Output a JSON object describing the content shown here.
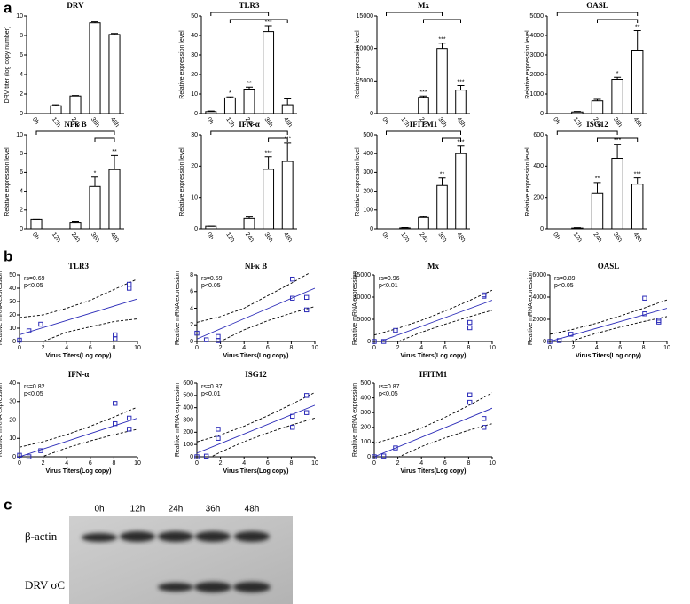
{
  "panel_labels": [
    "a",
    "b",
    "c"
  ],
  "blot": {
    "lanes": [
      "0h",
      "12h",
      "24h",
      "36h",
      "48h"
    ],
    "rows": [
      "β-actin",
      "DRV σC"
    ]
  },
  "chart_data": [
    {
      "type": "bar",
      "title": "DRV",
      "ylabel": "DRV titer (log copy number)",
      "categories": [
        "0h",
        "12h",
        "24h",
        "36h",
        "48h"
      ],
      "values": [
        0,
        0.8,
        1.8,
        9.3,
        8.1
      ],
      "errors": [
        0,
        0.1,
        0.05,
        0.1,
        0.1
      ],
      "stars": [
        null,
        null,
        null,
        null,
        null
      ],
      "comparisons": [],
      "ylim": [
        0,
        10
      ],
      "yticks": [
        0,
        2,
        4,
        6,
        8,
        10
      ]
    },
    {
      "type": "bar",
      "title": "TLR3",
      "ylabel": "Relative expression level",
      "categories": [
        "0h",
        "12h",
        "24h",
        "36h",
        "48h"
      ],
      "values": [
        1,
        8,
        12.5,
        42,
        4.5
      ],
      "errors": [
        0.3,
        0.5,
        1,
        3,
        3
      ],
      "stars": [
        null,
        "*",
        "**",
        "***",
        null
      ],
      "comparisons": [
        [
          0,
          3
        ],
        [
          1,
          4
        ]
      ],
      "ylim": [
        0,
        50
      ],
      "yticks": [
        0,
        10,
        20,
        30,
        40,
        50
      ]
    },
    {
      "type": "bar",
      "title": "Mx",
      "ylabel": "Relative expression level",
      "categories": [
        "0h",
        "12h",
        "24h",
        "36h",
        "48h"
      ],
      "values": [
        0,
        0,
        2500,
        10000,
        3600
      ],
      "errors": [
        0,
        0,
        200,
        800,
        700
      ],
      "stars": [
        null,
        null,
        "***",
        "***",
        "***"
      ],
      "comparisons": [
        [
          0,
          3
        ],
        [
          2,
          4
        ]
      ],
      "ylim": [
        0,
        15000
      ],
      "yticks": [
        0,
        5000,
        10000,
        15000
      ]
    },
    {
      "type": "bar",
      "title": "OASL",
      "ylabel": "Relative expression level",
      "categories": [
        "0h",
        "12h",
        "24h",
        "36h",
        "48h"
      ],
      "values": [
        0,
        80,
        650,
        1750,
        3250
      ],
      "errors": [
        0,
        30,
        80,
        100,
        1000
      ],
      "stars": [
        null,
        null,
        null,
        "*",
        "**"
      ],
      "comparisons": [
        [
          0,
          4
        ],
        [
          2,
          4
        ]
      ],
      "ylim": [
        0,
        5000
      ],
      "yticks": [
        0,
        1000,
        2000,
        3000,
        4000,
        5000
      ]
    },
    {
      "type": "bar",
      "title": "NFκ B",
      "ylabel": "Relative expression level",
      "categories": [
        "0h",
        "12h",
        "24h",
        "36h",
        "48h"
      ],
      "values": [
        1,
        0,
        0.7,
        4.5,
        6.3
      ],
      "errors": [
        0,
        0,
        0.1,
        1,
        1.5
      ],
      "stars": [
        null,
        null,
        null,
        "*",
        "**"
      ],
      "comparisons": [
        [
          0,
          4
        ],
        [
          3,
          4
        ]
      ],
      "ylim": [
        0,
        10
      ],
      "yticks": [
        0,
        2,
        4,
        6,
        8,
        10
      ]
    },
    {
      "type": "bar",
      "title": "IFN-α",
      "ylabel": "Relative expression level",
      "categories": [
        "0h",
        "12h",
        "24h",
        "36h",
        "48h"
      ],
      "values": [
        0.8,
        0,
        3.3,
        19,
        21.5
      ],
      "errors": [
        0,
        0,
        0.5,
        4,
        6
      ],
      "stars": [
        null,
        null,
        null,
        "***",
        "***"
      ],
      "comparisons": [
        [
          0,
          4
        ],
        [
          3,
          4
        ]
      ],
      "ylim": [
        0,
        30
      ],
      "yticks": [
        0,
        10,
        20,
        30
      ]
    },
    {
      "type": "bar",
      "title": "IFITM1",
      "ylabel": "Relative expression level",
      "categories": [
        "0h",
        "12h",
        "24h",
        "36h",
        "48h"
      ],
      "values": [
        0,
        5,
        60,
        230,
        400
      ],
      "errors": [
        0,
        2,
        5,
        40,
        40
      ],
      "stars": [
        null,
        null,
        null,
        "**",
        "***"
      ],
      "comparisons": [
        [
          0,
          4
        ],
        [
          3,
          4
        ]
      ],
      "ylim": [
        0,
        500
      ],
      "yticks": [
        0,
        100,
        200,
        300,
        400,
        500
      ]
    },
    {
      "type": "bar",
      "title": "ISG12",
      "ylabel": "Relative expression level",
      "categories": [
        "0h",
        "12h",
        "24h",
        "36h",
        "48h"
      ],
      "values": [
        0,
        5,
        225,
        450,
        285
      ],
      "errors": [
        0,
        3,
        70,
        90,
        40
      ],
      "stars": [
        null,
        null,
        "**",
        "***",
        "***"
      ],
      "comparisons": [
        [
          0,
          3
        ],
        [
          2,
          4
        ]
      ],
      "ylim": [
        0,
        600
      ],
      "yticks": [
        0,
        200,
        400,
        600
      ]
    },
    {
      "type": "scatter",
      "title": "TLR3",
      "xlabel": "Virus Titers(Log copy)",
      "ylabel": "Realtive mRNA expression",
      "annotations": [
        "rs=0.69",
        "p<0.05"
      ],
      "color": "#2b2bb8",
      "x": [
        0,
        0.8,
        1.8,
        8.1,
        8.1,
        9.3,
        9.3
      ],
      "y": [
        1,
        8,
        13,
        5,
        2,
        40,
        43
      ],
      "fit": {
        "x": [
          0,
          10
        ],
        "y": [
          5,
          32
        ]
      },
      "band": {
        "x": [
          0,
          2,
          4,
          6,
          8,
          10
        ],
        "upper": [
          18,
          20,
          25,
          31,
          39,
          47
        ],
        "lower": [
          -8,
          0,
          7,
          11,
          15,
          17
        ]
      },
      "xlim": [
        0,
        10
      ],
      "xticks": [
        0,
        2,
        4,
        6,
        8,
        10
      ],
      "ylim": [
        0,
        50
      ],
      "yticks": [
        0,
        10,
        20,
        30,
        40,
        50
      ]
    },
    {
      "type": "scatter",
      "title": "NFκ B",
      "xlabel": "Virus Titers(Log copy)",
      "ylabel": "Realtive mRNA expression",
      "annotations": [
        "rs=0.59",
        "p<0.05"
      ],
      "color": "#2b2bb8",
      "x": [
        0,
        0.8,
        1.8,
        1.8,
        8.1,
        8.1,
        9.3,
        9.3
      ],
      "y": [
        1,
        0.2,
        0.6,
        0.1,
        7.5,
        5.2,
        5.3,
        3.8
      ],
      "fit": {
        "x": [
          0,
          10
        ],
        "y": [
          0.3,
          6.4
        ]
      },
      "band": {
        "x": [
          0,
          2,
          4,
          6,
          8,
          10
        ],
        "upper": [
          2.3,
          3,
          4,
          5.5,
          7,
          8.6
        ],
        "lower": [
          -1.7,
          0,
          1.4,
          2.5,
          3.4,
          4.2
        ]
      },
      "xlim": [
        0,
        10
      ],
      "xticks": [
        0,
        2,
        4,
        6,
        8,
        10
      ],
      "ylim": [
        0,
        8
      ],
      "yticks": [
        0,
        2,
        4,
        6,
        8
      ]
    },
    {
      "type": "scatter",
      "title": "Mx",
      "xlabel": "Virus Titers(Log copy)",
      "ylabel": "Realtive mRNA expression",
      "annotations": [
        "rs=0.96",
        "p<0.01"
      ],
      "color": "#2b2bb8",
      "x": [
        0,
        0.8,
        1.8,
        8.1,
        8.1,
        9.3,
        9.3
      ],
      "y": [
        0,
        0,
        2500,
        4300,
        3100,
        10500,
        10200
      ],
      "fit": {
        "x": [
          0,
          10
        ],
        "y": [
          -500,
          9300
        ]
      },
      "band": {
        "x": [
          0,
          2,
          4,
          6,
          8,
          10
        ],
        "upper": [
          1450,
          2960,
          4770,
          6880,
          9140,
          11550
        ],
        "lower": [
          -2450,
          -40,
          2070,
          3880,
          5540,
          7050
        ]
      },
      "xlim": [
        0,
        10
      ],
      "xticks": [
        0,
        2,
        4,
        6,
        8,
        10
      ],
      "ylim": [
        0,
        15000
      ],
      "yticks": [
        0,
        5000,
        10000,
        15000
      ]
    },
    {
      "type": "scatter",
      "title": "OASL",
      "xlabel": "Virus Titers(Log copy)",
      "ylabel": "Realtive mRNA expression",
      "annotations": [
        "rs=0.89",
        "p<0.05"
      ],
      "color": "#2b2bb8",
      "x": [
        0,
        0.8,
        1.8,
        8.1,
        8.1,
        9.3,
        9.3
      ],
      "y": [
        0,
        80,
        650,
        3900,
        2500,
        1750,
        1900
      ],
      "fit": {
        "x": [
          0,
          10
        ],
        "y": [
          0,
          3000
        ]
      },
      "band": {
        "x": [
          0,
          2,
          4,
          6,
          8,
          10
        ],
        "upper": [
          650,
          1100,
          1650,
          2300,
          3000,
          3750
        ],
        "lower": [
          -650,
          100,
          750,
          1300,
          1800,
          2250
        ]
      },
      "xlim": [
        0,
        10
      ],
      "xticks": [
        0,
        2,
        4,
        6,
        8,
        10
      ],
      "ylim": [
        0,
        6000
      ],
      "yticks": [
        0,
        2000,
        4000,
        6000
      ]
    },
    {
      "type": "scatter",
      "title": "IFN-α",
      "xlabel": "Virus Titers(Log copy)",
      "ylabel": "Realtive mRNA expression",
      "annotations": [
        "rs=0.82",
        "p<0.05"
      ],
      "color": "#2b2bb8",
      "x": [
        0,
        0.8,
        1.8,
        8.1,
        8.1,
        9.3,
        9.3
      ],
      "y": [
        0.8,
        0,
        3.3,
        29,
        18,
        21,
        15
      ],
      "fit": {
        "x": [
          0,
          10
        ],
        "y": [
          0,
          21
        ]
      },
      "band": {
        "x": [
          0,
          2,
          4,
          6,
          8,
          10
        ],
        "upper": [
          5.2,
          8.2,
          12,
          16.6,
          21.6,
          27
        ],
        "lower": [
          -5.2,
          0.2,
          4.8,
          8.6,
          12,
          15
        ]
      },
      "xlim": [
        0,
        10
      ],
      "xticks": [
        0,
        2,
        4,
        6,
        8,
        10
      ],
      "ylim": [
        0,
        40
      ],
      "yticks": [
        0,
        10,
        20,
        30,
        40
      ]
    },
    {
      "type": "scatter",
      "title": "ISG12",
      "xlabel": "Virus Titers(Log copy)",
      "ylabel": "Realtive mRNA expression",
      "annotations": [
        "rs=0.87",
        "p<0.01"
      ],
      "color": "#2b2bb8",
      "x": [
        0,
        0.8,
        1.8,
        1.8,
        8.1,
        8.1,
        9.3,
        9.3
      ],
      "y": [
        0,
        5,
        225,
        150,
        330,
        240,
        500,
        360
      ],
      "fit": {
        "x": [
          0,
          10
        ],
        "y": [
          30,
          420
        ]
      },
      "band": {
        "x": [
          0,
          2,
          4,
          6,
          8,
          10
        ],
        "upper": [
          121,
          178,
          249,
          334,
          426,
          525
        ],
        "lower": [
          -61,
          38,
          123,
          194,
          258,
          315
        ]
      },
      "xlim": [
        0,
        10
      ],
      "xticks": [
        0,
        2,
        4,
        6,
        8,
        10
      ],
      "ylim": [
        0,
        600
      ],
      "yticks": [
        0,
        100,
        200,
        300,
        400,
        500,
        600
      ]
    },
    {
      "type": "scatter",
      "title": "IFITM1",
      "xlabel": "Virus Titers(Log copy)",
      "ylabel": "Realtive mRNA expression",
      "annotations": [
        "rs=0.87",
        "p<0.05"
      ],
      "color": "#2b2bb8",
      "x": [
        0,
        0.8,
        1.8,
        8.1,
        8.1,
        9.3,
        9.3
      ],
      "y": [
        0,
        5,
        60,
        420,
        370,
        260,
        200
      ],
      "fit": {
        "x": [
          0,
          10
        ],
        "y": [
          0,
          330
        ]
      },
      "band": {
        "x": [
          0,
          2,
          4,
          6,
          8,
          10
        ],
        "upper": [
          91,
          136,
          195,
          268,
          348,
          435
        ],
        "lower": [
          -91,
          -4,
          69,
          128,
          180,
          225
        ]
      },
      "xlim": [
        0,
        10
      ],
      "xticks": [
        0,
        2,
        4,
        6,
        8,
        10
      ],
      "ylim": [
        0,
        500
      ],
      "yticks": [
        0,
        100,
        200,
        300,
        400,
        500
      ]
    }
  ]
}
